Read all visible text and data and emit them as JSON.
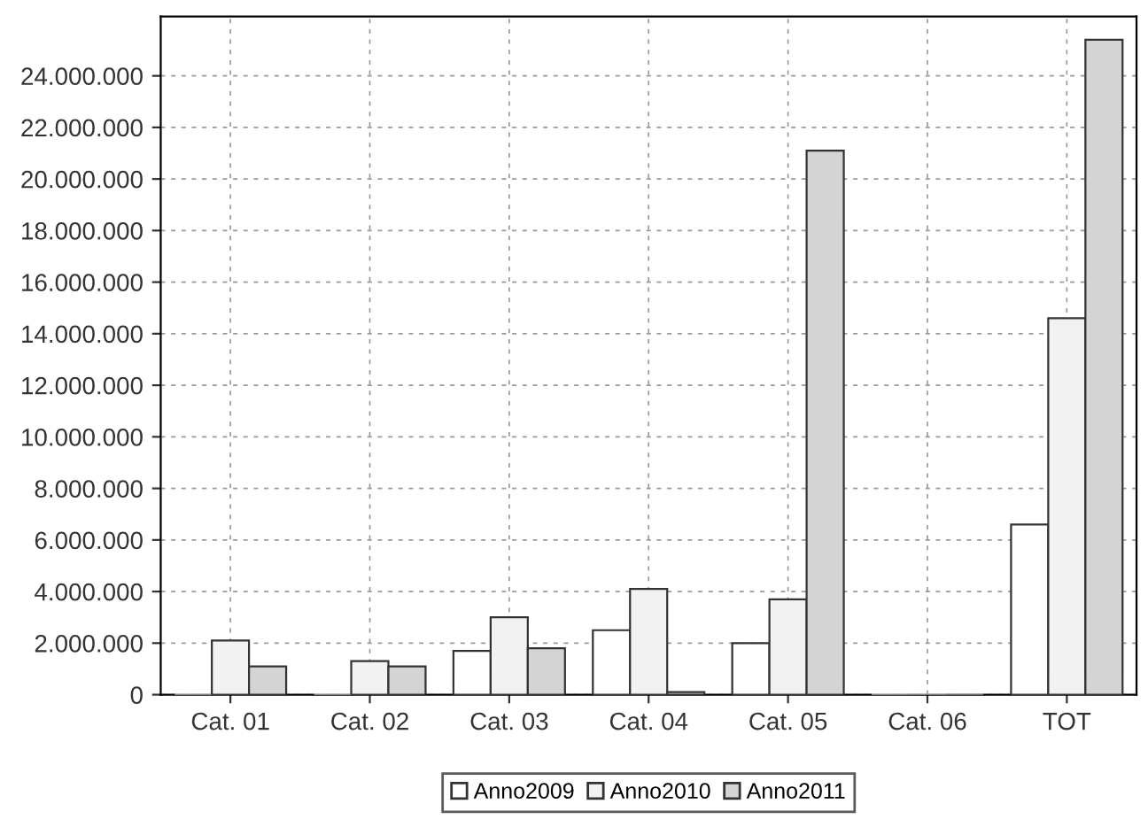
{
  "chart_data": {
    "type": "bar",
    "categories": [
      "Cat. 01",
      "Cat. 02",
      "Cat. 03",
      "Cat. 04",
      "Cat. 05",
      "Cat. 06",
      "TOT"
    ],
    "series": [
      {
        "name": "Anno2009",
        "color": "#ffffff",
        "values": [
          0,
          0,
          1700000,
          2500000,
          2000000,
          0,
          6600000
        ]
      },
      {
        "name": "Anno2010",
        "color": "#f2f2f2",
        "values": [
          2100000,
          1300000,
          3000000,
          4100000,
          3700000,
          0,
          14600000
        ]
      },
      {
        "name": "Anno2011",
        "color": "#d4d4d4",
        "values": [
          1100000,
          1100000,
          1800000,
          100000,
          21100000,
          0,
          25400000
        ]
      }
    ],
    "ylim": [
      0,
      26300000
    ],
    "yticks": [
      {
        "value": 0,
        "label": "0"
      },
      {
        "value": 2000000,
        "label": "2.000.000"
      },
      {
        "value": 4000000,
        "label": "4.000.000"
      },
      {
        "value": 6000000,
        "label": "6.000.000"
      },
      {
        "value": 8000000,
        "label": "8.000.000"
      },
      {
        "value": 10000000,
        "label": "10.000.000"
      },
      {
        "value": 12000000,
        "label": "12.000.000"
      },
      {
        "value": 14000000,
        "label": "14.000.000"
      },
      {
        "value": 16000000,
        "label": "16.000.000"
      },
      {
        "value": 18000000,
        "label": "18.000.000"
      },
      {
        "value": 20000000,
        "label": "20.000.000"
      },
      {
        "value": 22000000,
        "label": "22.000.000"
      },
      {
        "value": 24000000,
        "label": "24.000.000"
      }
    ],
    "grid": true,
    "legend": "bottom"
  }
}
